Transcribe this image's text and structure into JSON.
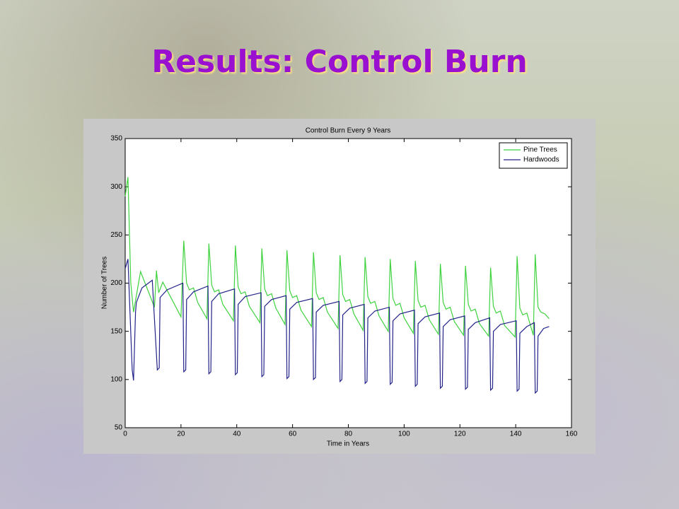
{
  "slide_title": "Results: Control Burn",
  "chart_data": {
    "type": "line",
    "title": "Control Burn Every 9 Years",
    "x_label": "Time in Years",
    "y_label": "Number of Trees",
    "xlim": [
      0,
      160
    ],
    "xticks": [
      0,
      20,
      40,
      60,
      80,
      100,
      120,
      140,
      160
    ],
    "ylim": [
      50,
      350
    ],
    "yticks": [
      50,
      100,
      150,
      200,
      250,
      300,
      350
    ],
    "legend": "upper right",
    "series": [
      {
        "name": "Pine Trees",
        "color": "#3fd23f",
        "x": [
          0,
          1,
          2,
          3,
          5.5,
          10.5,
          11.2,
          12,
          13.5,
          20,
          21,
          22,
          23,
          24.5,
          26,
          29.3,
          30,
          31,
          32,
          33.5,
          35,
          38.8,
          39.5,
          40.5,
          41.5,
          43,
          44.5,
          48.3,
          49,
          50,
          51,
          52.5,
          54,
          57.3,
          58,
          59,
          60,
          61.5,
          63,
          66.8,
          67.5,
          68.5,
          69.5,
          71,
          72.5,
          76.3,
          77,
          78,
          79,
          80.5,
          82,
          85.3,
          86,
          87,
          88,
          89.5,
          91,
          94.3,
          95,
          96,
          97,
          98.5,
          100,
          103.3,
          104,
          105,
          106,
          107.5,
          109,
          112.3,
          113,
          114,
          115,
          116.5,
          118,
          121.3,
          122,
          123,
          124,
          125.5,
          127,
          130.3,
          131,
          132,
          133,
          134.5,
          136,
          139.8,
          140.5,
          141.5,
          142.5,
          144,
          145.5,
          146.3,
          147,
          148,
          149,
          150.5,
          152
        ],
        "values": [
          290,
          310,
          200,
          170,
          212,
          175,
          213,
          190,
          201,
          165,
          244,
          200,
          193,
          195,
          180,
          163,
          241,
          198,
          191,
          193,
          178,
          161,
          239,
          196,
          189,
          191,
          176,
          159,
          236,
          194,
          187,
          189,
          174,
          157,
          234,
          192,
          185,
          187,
          172,
          155,
          232,
          190,
          183,
          185,
          170,
          153,
          229,
          188,
          181,
          183,
          168,
          151,
          227,
          186,
          179,
          181,
          166,
          150,
          225,
          184,
          177,
          179,
          164,
          148,
          223,
          182,
          175,
          177,
          162,
          147,
          220,
          180,
          173,
          175,
          160,
          146,
          218,
          178,
          171,
          173,
          158,
          145,
          216,
          176,
          169,
          171,
          156,
          144,
          228,
          174,
          167,
          169,
          154,
          146,
          230,
          175,
          170,
          168,
          163
        ]
      },
      {
        "name": "Hardwoods",
        "color": "#23238a",
        "x": [
          0,
          1,
          2.5,
          3,
          3.7,
          4,
          6,
          9.7,
          11.5,
          12.2,
          12.5,
          15,
          20.7,
          21,
          21.7,
          22,
          24.5,
          29.7,
          30,
          30.7,
          31,
          33.5,
          39.2,
          39.5,
          40.2,
          40.5,
          43,
          48.7,
          49,
          49.7,
          50,
          52.5,
          57.7,
          58,
          58.7,
          59,
          61.5,
          67.2,
          67.5,
          68.2,
          68.5,
          71,
          76.7,
          77,
          77.7,
          78,
          80.5,
          85.7,
          86,
          86.7,
          87,
          89.5,
          94.7,
          95,
          95.7,
          96,
          98.5,
          103.7,
          104,
          104.7,
          105,
          107.5,
          112.7,
          113,
          113.7,
          114,
          116.5,
          121.7,
          122,
          122.7,
          123,
          125.5,
          130.7,
          131,
          131.7,
          132,
          134.5,
          140.2,
          140.5,
          141.2,
          141.5,
          144,
          146.7,
          147,
          147.7,
          148,
          150,
          152
        ],
        "values": [
          215,
          225,
          110,
          99,
          170,
          180,
          195,
          203,
          110,
          112,
          185,
          193,
          200,
          108,
          110,
          183,
          191,
          197,
          106,
          108,
          181,
          189,
          194,
          105,
          107,
          178,
          186,
          190,
          103,
          105,
          176,
          183,
          187,
          101,
          103,
          173,
          180,
          184,
          100,
          102,
          170,
          177,
          181,
          98,
          100,
          167,
          174,
          178,
          96,
          98,
          164,
          171,
          175,
          95,
          97,
          161,
          168,
          172,
          93,
          95,
          158,
          165,
          169,
          91,
          93,
          155,
          162,
          166,
          90,
          92,
          152,
          159,
          164,
          89,
          91,
          150,
          157,
          161,
          88,
          90,
          148,
          155,
          159,
          86,
          88,
          145,
          153,
          155
        ]
      }
    ]
  }
}
